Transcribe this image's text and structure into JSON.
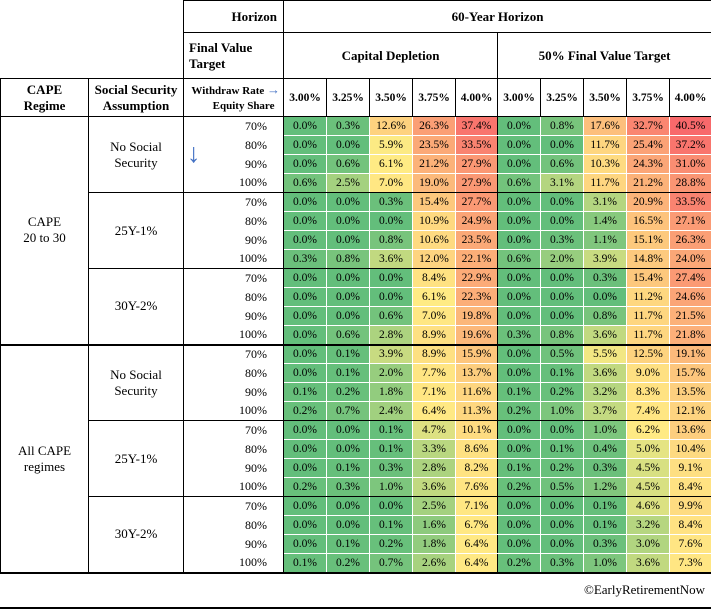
{
  "footer": {
    "credit": "©EarlyRetirementNow"
  },
  "icons": {
    "withdraw_rate_arrow": "→",
    "equity_share_arrow": "↓"
  },
  "colors": {
    "arrow_blue": "#4472C4",
    "border_black": "#000000"
  },
  "chart_data": {
    "type": "heatmap",
    "title": "60-Year Horizon",
    "header": {
      "horizon_label": "Horizon",
      "horizon_value": "60-Year Horizon",
      "final_value_target_label": "Final Value\nTarget",
      "withdraw_rate_label": "Withdraw Rate",
      "equity_share_label": "Equity Share",
      "cape_regime_label": "CAPE\nRegime",
      "social_security_label": "Social Security\nAssumption",
      "column_groups": [
        "Capital Depletion",
        "50% Final Value Target"
      ],
      "withdraw_rates": [
        "3.00%",
        "3.25%",
        "3.50%",
        "3.75%",
        "4.00%"
      ]
    },
    "equity_shares": [
      "70%",
      "80%",
      "90%",
      "100%"
    ],
    "value_unit": "percent",
    "color_scale": {
      "min_value": 0,
      "mid_value": 6,
      "max_value": 40.5,
      "min_color": "#63BE7B",
      "mid_color": "#FFEB84",
      "max_color": "#F8696B"
    },
    "regimes": [
      {
        "label": "CAPE\n20 to 30",
        "social_security_groups": [
          {
            "label": "No Social\nSecurity",
            "rows": [
              {
                "equity_share": "70%",
                "values": [
                  0.0,
                  0.3,
                  12.6,
                  26.3,
                  37.4,
                  0.0,
                  0.8,
                  17.6,
                  32.7,
                  40.5
                ]
              },
              {
                "equity_share": "80%",
                "values": [
                  0.0,
                  0.0,
                  5.9,
                  23.5,
                  33.5,
                  0.0,
                  0.0,
                  11.7,
                  25.4,
                  37.2
                ]
              },
              {
                "equity_share": "90%",
                "values": [
                  0.0,
                  0.6,
                  6.1,
                  21.2,
                  27.9,
                  0.0,
                  0.6,
                  10.3,
                  24.3,
                  31.0
                ]
              },
              {
                "equity_share": "100%",
                "values": [
                  0.6,
                  2.5,
                  7.0,
                  19.0,
                  27.9,
                  0.6,
                  3.1,
                  11.7,
                  21.2,
                  28.8
                ]
              }
            ]
          },
          {
            "label": "25Y-1%",
            "rows": [
              {
                "equity_share": "70%",
                "values": [
                  0.0,
                  0.0,
                  0.3,
                  15.4,
                  27.7,
                  0.0,
                  0.0,
                  3.1,
                  20.9,
                  33.5
                ]
              },
              {
                "equity_share": "80%",
                "values": [
                  0.0,
                  0.0,
                  0.0,
                  10.9,
                  24.9,
                  0.0,
                  0.0,
                  1.4,
                  16.5,
                  27.1
                ]
              },
              {
                "equity_share": "90%",
                "values": [
                  0.0,
                  0.0,
                  0.8,
                  10.6,
                  23.5,
                  0.0,
                  0.3,
                  1.1,
                  15.1,
                  26.3
                ]
              },
              {
                "equity_share": "100%",
                "values": [
                  0.3,
                  0.8,
                  3.6,
                  12.0,
                  22.1,
                  0.6,
                  2.0,
                  3.9,
                  14.8,
                  24.0
                ]
              }
            ]
          },
          {
            "label": "30Y-2%",
            "rows": [
              {
                "equity_share": "70%",
                "values": [
                  0.0,
                  0.0,
                  0.0,
                  8.4,
                  22.9,
                  0.0,
                  0.0,
                  0.3,
                  15.4,
                  27.4
                ]
              },
              {
                "equity_share": "80%",
                "values": [
                  0.0,
                  0.0,
                  0.0,
                  6.1,
                  22.3,
                  0.0,
                  0.0,
                  0.0,
                  11.2,
                  24.6
                ]
              },
              {
                "equity_share": "90%",
                "values": [
                  0.0,
                  0.0,
                  0.6,
                  7.0,
                  19.8,
                  0.0,
                  0.0,
                  0.8,
                  11.7,
                  21.5
                ]
              },
              {
                "equity_share": "100%",
                "values": [
                  0.0,
                  0.6,
                  2.8,
                  8.9,
                  19.6,
                  0.3,
                  0.8,
                  3.6,
                  11.7,
                  21.8
                ]
              }
            ]
          }
        ]
      },
      {
        "label": "All CAPE\nregimes",
        "social_security_groups": [
          {
            "label": "No Social\nSecurity",
            "rows": [
              {
                "equity_share": "70%",
                "values": [
                  0.0,
                  0.1,
                  3.9,
                  8.9,
                  15.9,
                  0.0,
                  0.5,
                  5.5,
                  12.5,
                  19.1
                ]
              },
              {
                "equity_share": "80%",
                "values": [
                  0.0,
                  0.1,
                  2.0,
                  7.7,
                  13.7,
                  0.0,
                  0.1,
                  3.6,
                  9.0,
                  15.7
                ]
              },
              {
                "equity_share": "90%",
                "values": [
                  0.1,
                  0.2,
                  1.8,
                  7.1,
                  11.6,
                  0.1,
                  0.2,
                  3.2,
                  8.3,
                  13.5
                ]
              },
              {
                "equity_share": "100%",
                "values": [
                  0.2,
                  0.7,
                  2.4,
                  6.4,
                  11.3,
                  0.2,
                  1.0,
                  3.7,
                  7.4,
                  12.1
                ]
              }
            ]
          },
          {
            "label": "25Y-1%",
            "rows": [
              {
                "equity_share": "70%",
                "values": [
                  0.0,
                  0.0,
                  0.1,
                  4.7,
                  10.1,
                  0.0,
                  0.0,
                  1.0,
                  6.2,
                  13.6
                ]
              },
              {
                "equity_share": "80%",
                "values": [
                  0.0,
                  0.0,
                  0.1,
                  3.3,
                  8.6,
                  0.0,
                  0.1,
                  0.4,
                  5.0,
                  10.4
                ]
              },
              {
                "equity_share": "90%",
                "values": [
                  0.0,
                  0.1,
                  0.3,
                  2.8,
                  8.2,
                  0.1,
                  0.2,
                  0.3,
                  4.5,
                  9.1
                ]
              },
              {
                "equity_share": "100%",
                "values": [
                  0.2,
                  0.3,
                  1.0,
                  3.6,
                  7.6,
                  0.2,
                  0.5,
                  1.2,
                  4.5,
                  8.4
                ]
              }
            ]
          },
          {
            "label": "30Y-2%",
            "rows": [
              {
                "equity_share": "70%",
                "values": [
                  0.0,
                  0.0,
                  0.0,
                  2.5,
                  7.1,
                  0.0,
                  0.0,
                  0.1,
                  4.6,
                  9.9
                ]
              },
              {
                "equity_share": "80%",
                "values": [
                  0.0,
                  0.0,
                  0.1,
                  1.6,
                  6.7,
                  0.0,
                  0.0,
                  0.1,
                  3.2,
                  8.4
                ]
              },
              {
                "equity_share": "90%",
                "values": [
                  0.0,
                  0.1,
                  0.2,
                  1.8,
                  6.4,
                  0.0,
                  0.0,
                  0.3,
                  3.0,
                  7.6
                ]
              },
              {
                "equity_share": "100%",
                "values": [
                  0.1,
                  0.2,
                  0.7,
                  2.6,
                  6.4,
                  0.2,
                  0.3,
                  1.0,
                  3.6,
                  7.3
                ]
              }
            ]
          }
        ]
      }
    ]
  }
}
